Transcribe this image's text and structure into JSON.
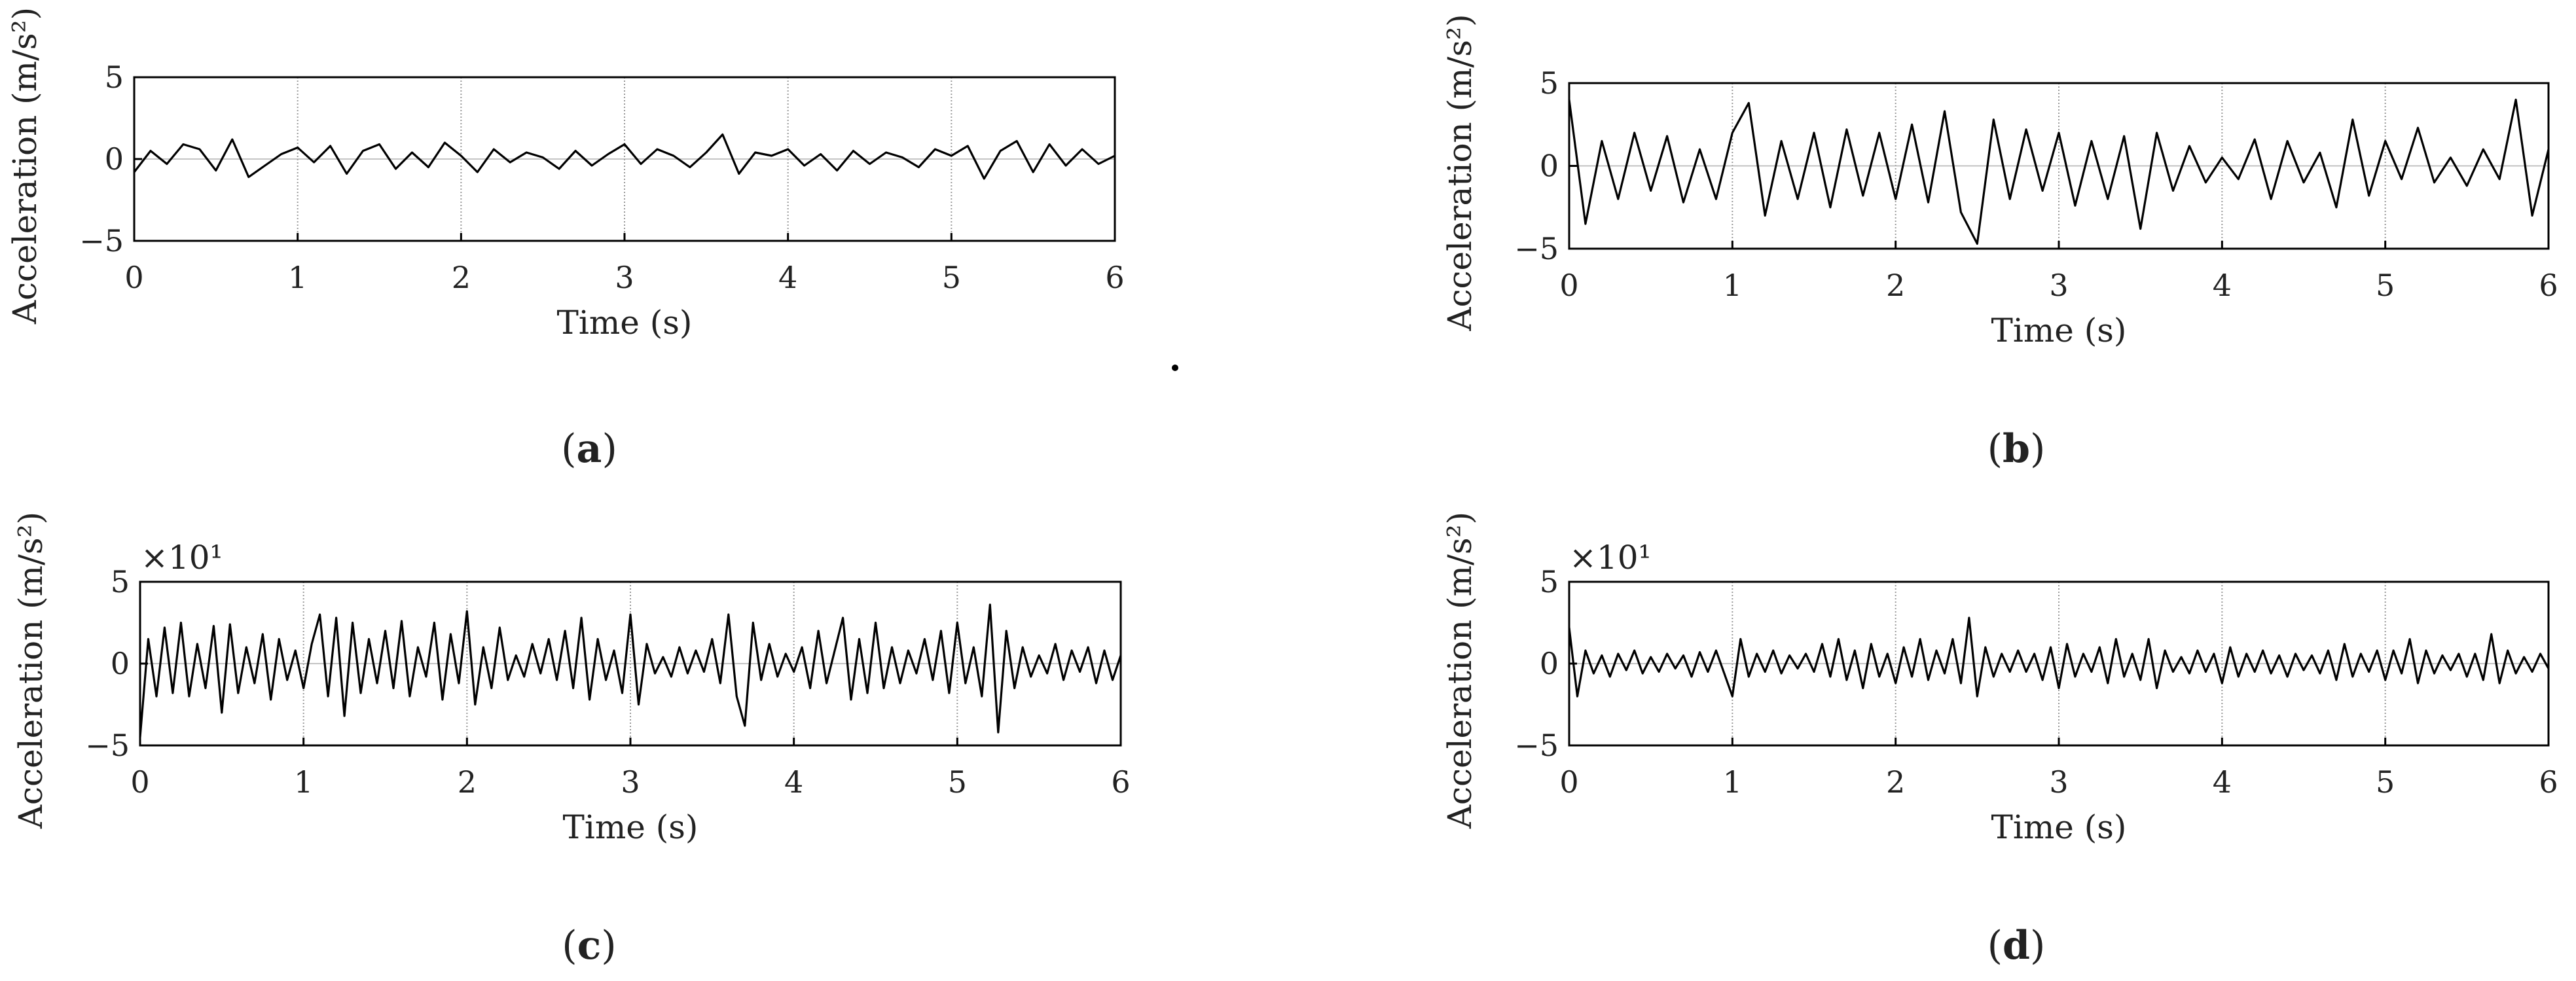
{
  "chart_data": [
    {
      "id": "a",
      "type": "line",
      "caption": "a",
      "xlabel": "Time (s)",
      "ylabel": "Acceleration (m/s²)",
      "multiplier": "",
      "xlim": [
        0,
        6
      ],
      "ylim": [
        -5,
        5
      ],
      "xticks": [
        0,
        1,
        2,
        3,
        4,
        5,
        6
      ],
      "yticks": [
        -5,
        0,
        5
      ],
      "grid": "vertical",
      "series": [
        {
          "x": [
            0,
            0.1,
            0.2,
            0.3,
            0.4,
            0.5,
            0.6,
            0.7,
            0.8,
            0.9,
            1.0,
            1.1,
            1.2,
            1.3,
            1.4,
            1.5,
            1.6,
            1.7,
            1.8,
            1.9,
            2.0,
            2.1,
            2.2,
            2.3,
            2.4,
            2.5,
            2.6,
            2.7,
            2.8,
            2.9,
            3.0,
            3.1,
            3.2,
            3.3,
            3.4,
            3.5,
            3.6,
            3.7,
            3.8,
            3.9,
            4.0,
            4.1,
            4.2,
            4.3,
            4.4,
            4.5,
            4.6,
            4.7,
            4.8,
            4.9,
            5.0,
            5.1,
            5.2,
            5.3,
            5.4,
            5.5,
            5.6,
            5.7,
            5.8,
            5.9,
            6.0
          ],
          "y": [
            -0.8,
            0.5,
            -0.3,
            0.9,
            0.6,
            -0.7,
            1.2,
            -1.1,
            -0.4,
            0.3,
            0.7,
            -0.2,
            0.8,
            -0.9,
            0.5,
            0.9,
            -0.6,
            0.4,
            -0.5,
            1.0,
            0.2,
            -0.8,
            0.6,
            -0.2,
            0.4,
            0.1,
            -0.6,
            0.5,
            -0.4,
            0.3,
            0.9,
            -0.3,
            0.6,
            0.2,
            -0.5,
            0.4,
            1.5,
            -0.9,
            0.4,
            0.2,
            0.6,
            -0.4,
            0.3,
            -0.7,
            0.5,
            -0.3,
            0.4,
            0.1,
            -0.5,
            0.6,
            0.2,
            0.8,
            -1.2,
            0.5,
            1.1,
            -0.8,
            0.9,
            -0.4,
            0.6,
            -0.3,
            0.2
          ]
        }
      ]
    },
    {
      "id": "b",
      "type": "line",
      "caption": "b",
      "xlabel": "Time (s)",
      "ylabel": "Acceleration (m/s²)",
      "multiplier": "",
      "xlim": [
        0,
        6
      ],
      "ylim": [
        -5,
        5
      ],
      "xticks": [
        0,
        1,
        2,
        3,
        4,
        5,
        6
      ],
      "yticks": [
        -5,
        0,
        5
      ],
      "grid": "vertical",
      "series": [
        {
          "x": [
            0,
            0.1,
            0.2,
            0.3,
            0.4,
            0.5,
            0.6,
            0.7,
            0.8,
            0.9,
            1.0,
            1.1,
            1.2,
            1.3,
            1.4,
            1.5,
            1.6,
            1.7,
            1.8,
            1.9,
            2.0,
            2.1,
            2.2,
            2.3,
            2.4,
            2.5,
            2.6,
            2.7,
            2.8,
            2.9,
            3.0,
            3.1,
            3.2,
            3.3,
            3.4,
            3.5,
            3.6,
            3.7,
            3.8,
            3.9,
            4.0,
            4.1,
            4.2,
            4.3,
            4.4,
            4.5,
            4.6,
            4.7,
            4.8,
            4.9,
            5.0,
            5.1,
            5.2,
            5.3,
            5.4,
            5.5,
            5.6,
            5.7,
            5.8,
            5.9,
            6.0
          ],
          "y": [
            4.0,
            -3.5,
            1.5,
            -2.0,
            2.0,
            -1.5,
            1.8,
            -2.2,
            1.0,
            -2.0,
            2.0,
            3.8,
            -3.0,
            1.5,
            -2.0,
            2.0,
            -2.5,
            2.2,
            -1.8,
            2.0,
            -2.0,
            2.5,
            -2.2,
            3.3,
            -2.8,
            -4.7,
            2.8,
            -2.0,
            2.2,
            -1.5,
            2.0,
            -2.4,
            1.5,
            -2.0,
            1.8,
            -3.8,
            2.0,
            -1.5,
            1.2,
            -1.0,
            0.5,
            -0.8,
            1.6,
            -2.0,
            1.5,
            -1.0,
            0.8,
            -2.5,
            2.8,
            -1.8,
            1.5,
            -0.8,
            2.3,
            -1.0,
            0.5,
            -1.2,
            1.0,
            -0.8,
            4.0,
            -3.0,
            1.0
          ]
        }
      ]
    },
    {
      "id": "c",
      "type": "line",
      "caption": "c",
      "xlabel": "Time (s)",
      "ylabel": "Acceleration (m/s²)",
      "multiplier": "×10¹",
      "xlim": [
        0,
        6
      ],
      "ylim": [
        -5,
        5
      ],
      "xticks": [
        0,
        1,
        2,
        3,
        4,
        5,
        6
      ],
      "yticks": [
        -5,
        0,
        5
      ],
      "grid": "vertical",
      "series": [
        {
          "x": [
            0,
            0.05,
            0.1,
            0.15,
            0.2,
            0.25,
            0.3,
            0.35,
            0.4,
            0.45,
            0.5,
            0.55,
            0.6,
            0.65,
            0.7,
            0.75,
            0.8,
            0.85,
            0.9,
            0.95,
            1.0,
            1.05,
            1.1,
            1.15,
            1.2,
            1.25,
            1.3,
            1.35,
            1.4,
            1.45,
            1.5,
            1.55,
            1.6,
            1.65,
            1.7,
            1.75,
            1.8,
            1.85,
            1.9,
            1.95,
            2.0,
            2.05,
            2.1,
            2.15,
            2.2,
            2.25,
            2.3,
            2.35,
            2.4,
            2.45,
            2.5,
            2.55,
            2.6,
            2.65,
            2.7,
            2.75,
            2.8,
            2.85,
            2.9,
            2.95,
            3.0,
            3.05,
            3.1,
            3.15,
            3.2,
            3.25,
            3.3,
            3.35,
            3.4,
            3.45,
            3.5,
            3.55,
            3.6,
            3.65,
            3.7,
            3.75,
            3.8,
            3.85,
            3.9,
            3.95,
            4.0,
            4.05,
            4.1,
            4.15,
            4.2,
            4.25,
            4.3,
            4.35,
            4.4,
            4.45,
            4.5,
            4.55,
            4.6,
            4.65,
            4.7,
            4.75,
            4.8,
            4.85,
            4.9,
            4.95,
            5.0,
            5.05,
            5.1,
            5.15,
            5.2,
            5.25,
            5.3,
            5.35,
            5.4,
            5.45,
            5.5,
            5.55,
            5.6,
            5.65,
            5.7,
            5.75,
            5.8,
            5.85,
            5.9,
            5.95,
            6.0
          ],
          "y": [
            -4.5,
            1.5,
            -2.0,
            2.2,
            -1.8,
            2.5,
            -2.0,
            1.2,
            -1.5,
            2.3,
            -3.0,
            2.4,
            -1.8,
            1.0,
            -1.2,
            1.8,
            -2.2,
            1.5,
            -1.0,
            0.8,
            -1.5,
            1.2,
            3.0,
            -2.0,
            2.8,
            -3.2,
            2.5,
            -1.8,
            1.5,
            -1.2,
            2.0,
            -1.5,
            2.6,
            -2.0,
            1.0,
            -0.8,
            2.5,
            -2.2,
            1.8,
            -1.2,
            3.2,
            -2.5,
            1.0,
            -1.5,
            2.2,
            -1.0,
            0.5,
            -0.8,
            1.2,
            -0.6,
            1.5,
            -1.0,
            2.0,
            -1.5,
            2.8,
            -2.2,
            1.5,
            -1.0,
            0.8,
            -1.8,
            3.0,
            -2.5,
            1.2,
            -0.6,
            0.4,
            -0.8,
            1.0,
            -0.6,
            0.8,
            -0.5,
            1.5,
            -1.2,
            3.0,
            -2.0,
            -3.8,
            2.5,
            -1.0,
            1.2,
            -0.8,
            0.6,
            -0.5,
            1.0,
            -1.5,
            2.0,
            -1.2,
            0.8,
            2.8,
            -2.2,
            1.5,
            -1.8,
            2.5,
            -1.5,
            1.0,
            -1.2,
            0.8,
            -0.6,
            1.5,
            -1.0,
            2.0,
            -1.8,
            2.5,
            -1.2,
            1.0,
            -2.0,
            3.6,
            -4.2,
            2.0,
            -1.5,
            1.0,
            -0.8,
            0.5,
            -0.6,
            1.2,
            -1.0,
            0.8,
            -0.5,
            1.0,
            -1.2,
            0.8,
            -1.0,
            0.5
          ]
        }
      ]
    },
    {
      "id": "d",
      "type": "line",
      "caption": "d",
      "xlabel": "Time (s)",
      "ylabel": "Acceleration (m/s²)",
      "multiplier": "×10¹",
      "xlim": [
        0,
        6
      ],
      "ylim": [
        -5,
        5
      ],
      "xticks": [
        0,
        1,
        2,
        3,
        4,
        5,
        6
      ],
      "yticks": [
        -5,
        0,
        5
      ],
      "grid": "vertical",
      "series": [
        {
          "x": [
            0,
            0.05,
            0.1,
            0.15,
            0.2,
            0.25,
            0.3,
            0.35,
            0.4,
            0.45,
            0.5,
            0.55,
            0.6,
            0.65,
            0.7,
            0.75,
            0.8,
            0.85,
            0.9,
            0.95,
            1.0,
            1.05,
            1.1,
            1.15,
            1.2,
            1.25,
            1.3,
            1.35,
            1.4,
            1.45,
            1.5,
            1.55,
            1.6,
            1.65,
            1.7,
            1.75,
            1.8,
            1.85,
            1.9,
            1.95,
            2.0,
            2.05,
            2.1,
            2.15,
            2.2,
            2.25,
            2.3,
            2.35,
            2.4,
            2.45,
            2.5,
            2.55,
            2.6,
            2.65,
            2.7,
            2.75,
            2.8,
            2.85,
            2.9,
            2.95,
            3.0,
            3.05,
            3.1,
            3.15,
            3.2,
            3.25,
            3.3,
            3.35,
            3.4,
            3.45,
            3.5,
            3.55,
            3.6,
            3.65,
            3.7,
            3.75,
            3.8,
            3.85,
            3.9,
            3.95,
            4.0,
            4.05,
            4.1,
            4.15,
            4.2,
            4.25,
            4.3,
            4.35,
            4.4,
            4.45,
            4.5,
            4.55,
            4.6,
            4.65,
            4.7,
            4.75,
            4.8,
            4.85,
            4.9,
            4.95,
            5.0,
            5.05,
            5.1,
            5.15,
            5.2,
            5.25,
            5.3,
            5.35,
            5.4,
            5.45,
            5.5,
            5.55,
            5.6,
            5.65,
            5.7,
            5.75,
            5.8,
            5.85,
            5.9,
            5.95,
            6.0
          ],
          "y": [
            2.2,
            -2.0,
            0.8,
            -0.6,
            0.5,
            -0.8,
            0.6,
            -0.4,
            0.8,
            -0.6,
            0.4,
            -0.5,
            0.6,
            -0.3,
            0.5,
            -0.8,
            0.7,
            -0.5,
            0.8,
            -0.6,
            -2.0,
            1.5,
            -0.8,
            0.6,
            -0.5,
            0.8,
            -0.6,
            0.5,
            -0.3,
            0.6,
            -0.5,
            1.2,
            -0.8,
            1.5,
            -1.0,
            0.8,
            -1.5,
            1.2,
            -0.8,
            0.6,
            -1.2,
            1.0,
            -0.8,
            1.5,
            -1.0,
            0.8,
            -0.6,
            1.5,
            -1.2,
            2.8,
            -2.0,
            1.0,
            -0.8,
            0.6,
            -0.5,
            0.8,
            -0.5,
            0.6,
            -1.0,
            1.0,
            -1.5,
            1.2,
            -0.8,
            0.6,
            -0.5,
            1.0,
            -1.2,
            1.5,
            -0.8,
            0.6,
            -1.0,
            1.5,
            -1.5,
            0.8,
            -0.5,
            0.4,
            -0.6,
            0.8,
            -0.5,
            0.6,
            -1.2,
            1.0,
            -0.8,
            0.6,
            -0.5,
            0.8,
            -0.6,
            0.5,
            -0.8,
            0.6,
            -0.4,
            0.5,
            -0.6,
            0.8,
            -1.0,
            1.2,
            -0.8,
            0.6,
            -0.5,
            0.8,
            -1.0,
            0.8,
            -0.6,
            1.5,
            -1.2,
            0.8,
            -0.6,
            0.5,
            -0.4,
            0.6,
            -0.8,
            0.6,
            -1.0,
            1.8,
            -1.2,
            0.8,
            -0.6,
            0.4,
            -0.5,
            0.6,
            -0.3
          ]
        }
      ]
    }
  ]
}
